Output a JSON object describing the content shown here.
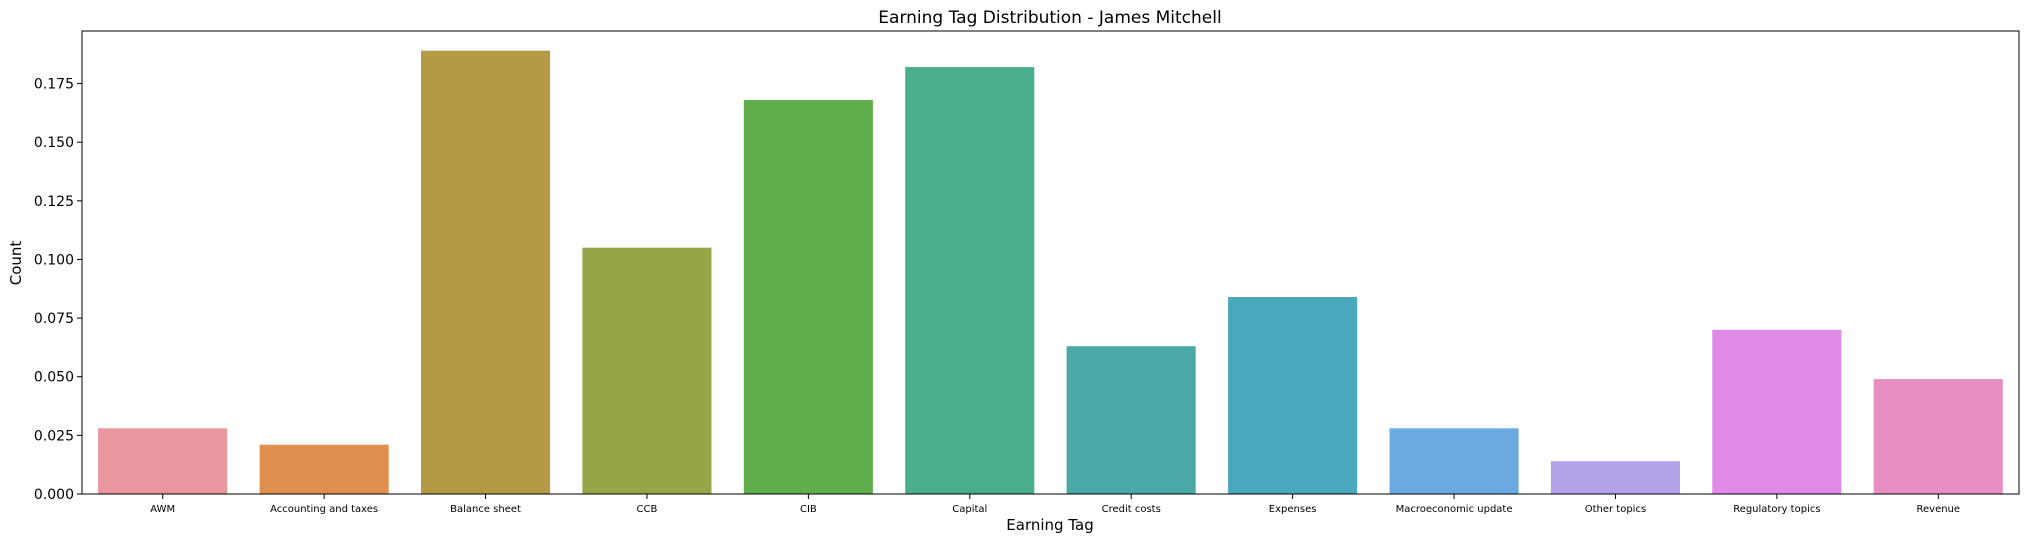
{
  "chart_data": {
    "type": "bar",
    "title": "Earning Tag Distribution - James Mitchell",
    "xlabel": "Earning Tag",
    "ylabel": "Count",
    "ylim": [
      0,
      0.1974
    ],
    "yticks": [
      "0.000",
      "0.025",
      "0.050",
      "0.075",
      "0.100",
      "0.125",
      "0.150",
      "0.175"
    ],
    "grid": false,
    "legend": "none",
    "categories": [
      "AWM",
      "Accounting and taxes",
      "Balance sheet",
      "CCB",
      "CIB",
      "Capital",
      "Credit costs",
      "Expenses",
      "Macroeconomic update",
      "Other topics",
      "Regulatory topics",
      "Revenue"
    ],
    "values": [
      0.028,
      0.021,
      0.189,
      0.105,
      0.168,
      0.182,
      0.063,
      0.084,
      0.028,
      0.014,
      0.07,
      0.049
    ],
    "colors": [
      "#e9969e",
      "#e08f4f",
      "#b59a45",
      "#97a447",
      "#5fae4b",
      "#4aae8a",
      "#4aa9a7",
      "#4aa8bd",
      "#6aaae1",
      "#b4a2e8",
      "#de8ae6",
      "#e78ec3"
    ]
  }
}
